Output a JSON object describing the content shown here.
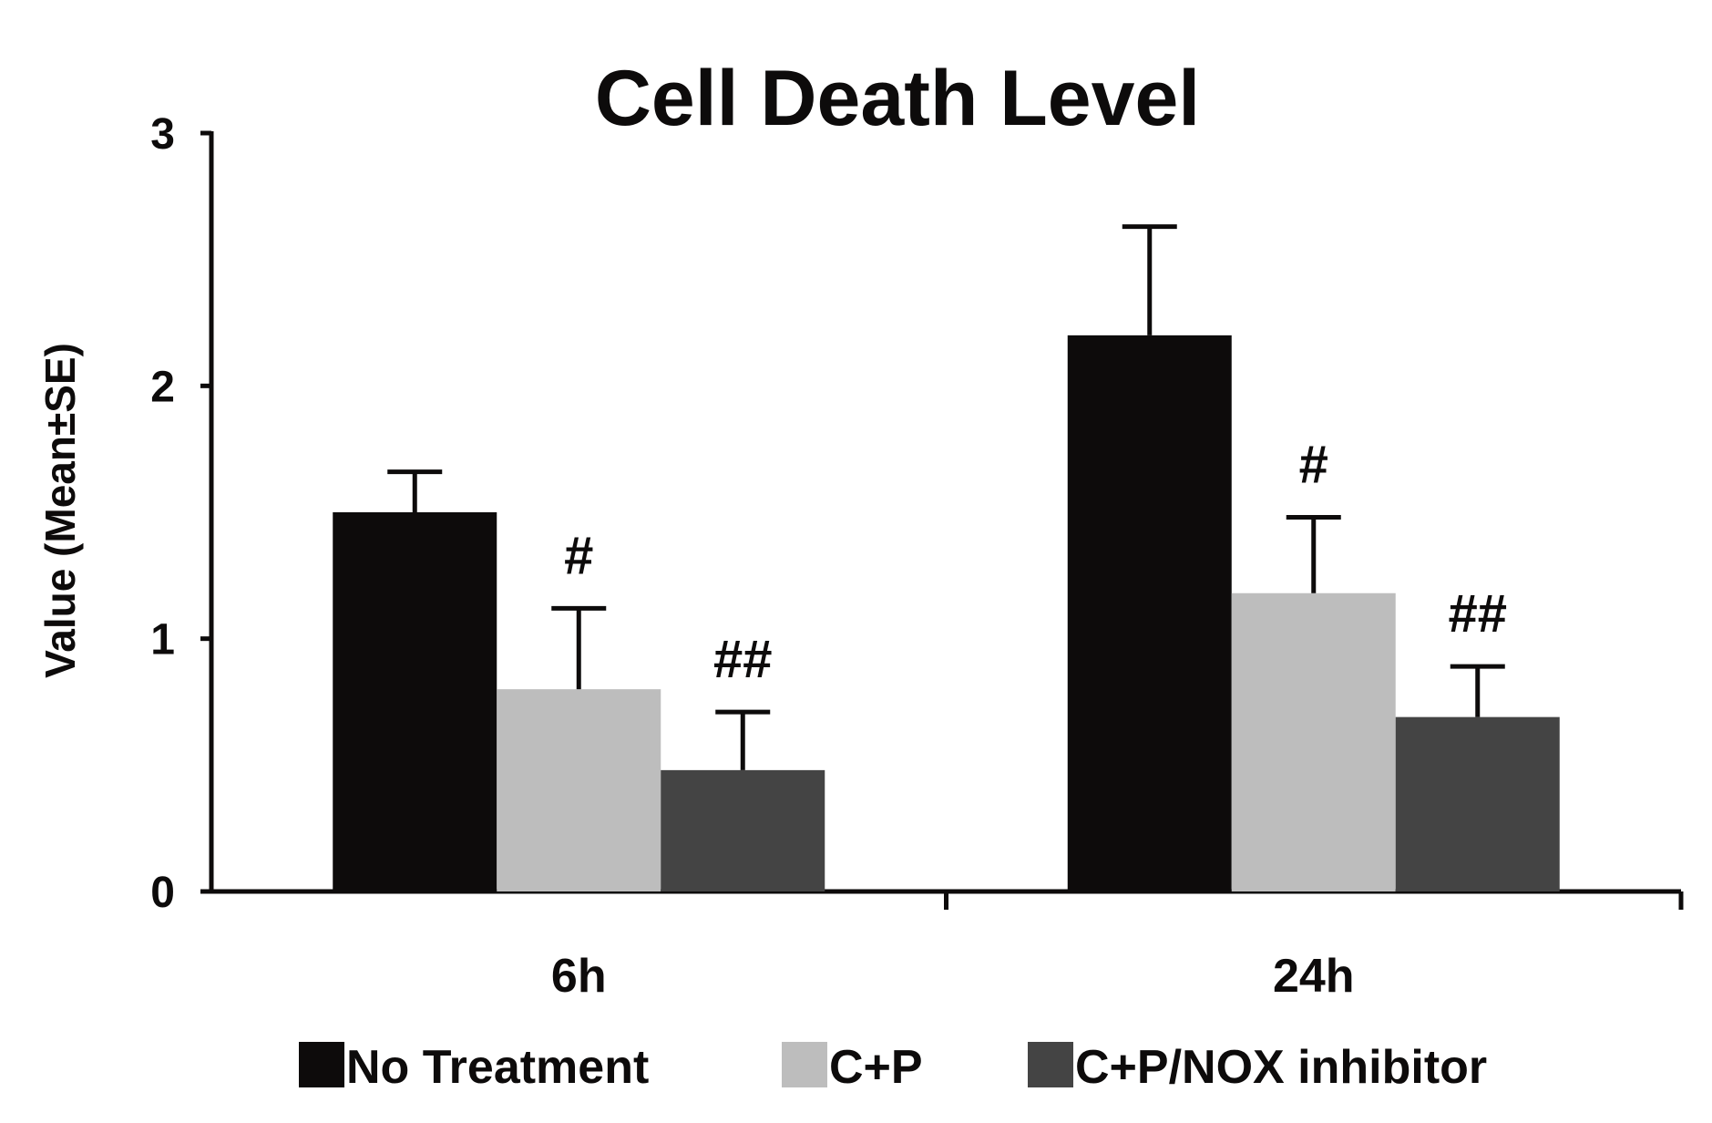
{
  "chart_data": {
    "type": "bar",
    "title": "Cell Death Level",
    "xlabel": "",
    "ylabel": "Value (Mean±SE)",
    "ylim": [
      0,
      3
    ],
    "yticks": [
      "0",
      "1",
      "2",
      "3"
    ],
    "categories": [
      "6h",
      "24h"
    ],
    "series": [
      {
        "name": "No Treatment",
        "color": "#0d0b0b",
        "values": [
          1.5,
          2.2
        ],
        "errors": [
          0.16,
          0.43
        ],
        "annotations": [
          "",
          ""
        ]
      },
      {
        "name": "C+P",
        "color": "#bdbdbd",
        "values": [
          0.8,
          1.18
        ],
        "errors": [
          0.32,
          0.3
        ],
        "annotations": [
          "#",
          "#"
        ]
      },
      {
        "name": "C+P/NOX inhibitor",
        "color": "#444444",
        "values": [
          0.48,
          0.69
        ],
        "errors": [
          0.23,
          0.2
        ],
        "annotations": [
          "##",
          "##"
        ]
      }
    ],
    "legend_position": "bottom",
    "grid": false
  }
}
